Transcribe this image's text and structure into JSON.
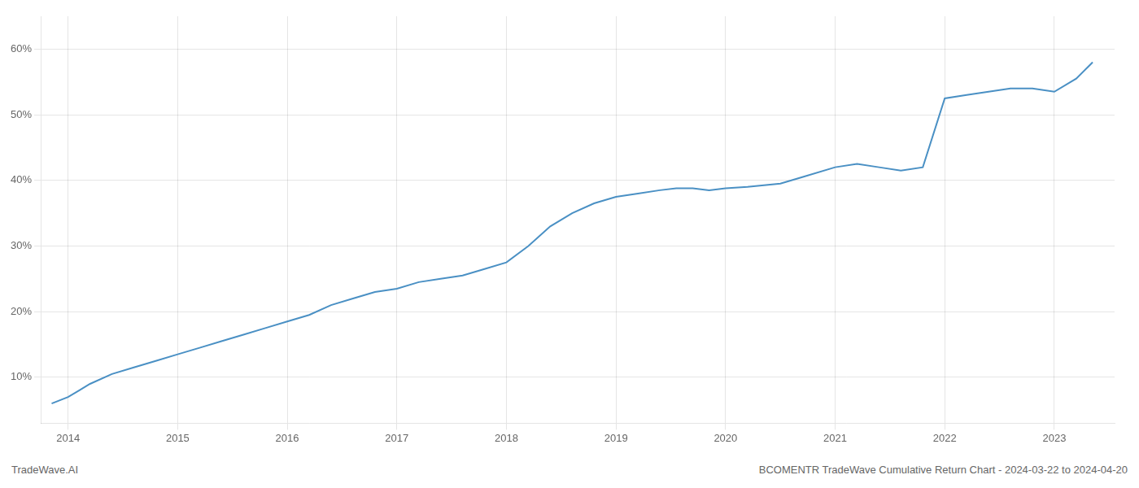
{
  "chart_data": {
    "type": "line",
    "title": "BCOMENTR TradeWave Cumulative Return Chart - 2024-03-22 to 2024-04-20",
    "annotations": [
      "TradeWave.AI"
    ],
    "color": "#4a90c4",
    "grid": true,
    "x": [
      2013.85,
      2014.0,
      2014.1,
      2014.2,
      2014.4,
      2014.6,
      2014.8,
      2015.0,
      2015.2,
      2015.4,
      2015.6,
      2015.8,
      2016.0,
      2016.2,
      2016.4,
      2016.6,
      2016.8,
      2017.0,
      2017.2,
      2017.4,
      2017.6,
      2017.8,
      2018.0,
      2018.2,
      2018.4,
      2018.6,
      2018.8,
      2019.0,
      2019.2,
      2019.4,
      2019.55,
      2019.7,
      2019.85,
      2020.0,
      2020.2,
      2020.5,
      2020.7,
      2021.0,
      2021.2,
      2021.4,
      2021.6,
      2021.8,
      2022.0,
      2022.2,
      2022.4,
      2022.6,
      2022.8,
      2023.0,
      2023.2,
      2023.35
    ],
    "values": [
      6.0,
      7.0,
      8.0,
      9.0,
      10.5,
      11.5,
      12.5,
      13.5,
      14.5,
      15.5,
      16.5,
      17.5,
      18.5,
      19.5,
      21.0,
      22.0,
      23.0,
      23.5,
      24.5,
      25.0,
      25.5,
      26.5,
      27.5,
      30.0,
      33.0,
      35.0,
      36.5,
      37.5,
      38.0,
      38.5,
      38.8,
      38.8,
      38.5,
      38.8,
      39.0,
      39.5,
      40.5,
      42.0,
      42.5,
      42.0,
      41.5,
      42.0,
      52.5,
      53.0,
      53.5,
      54.0,
      54.0,
      53.5,
      55.5,
      58.0
    ],
    "xlim": [
      2013.75,
      2023.55
    ],
    "xticks": [
      2014,
      2015,
      2016,
      2017,
      2018,
      2019,
      2020,
      2021,
      2022,
      2023
    ],
    "ylim": [
      3,
      65
    ],
    "yticks": [
      {
        "value": 10,
        "label": "10%"
      },
      {
        "value": 20,
        "label": "20%"
      },
      {
        "value": 30,
        "label": "30%"
      },
      {
        "value": 40,
        "label": "40%"
      },
      {
        "value": 50,
        "label": "50%"
      },
      {
        "value": 60,
        "label": "60%"
      }
    ]
  }
}
